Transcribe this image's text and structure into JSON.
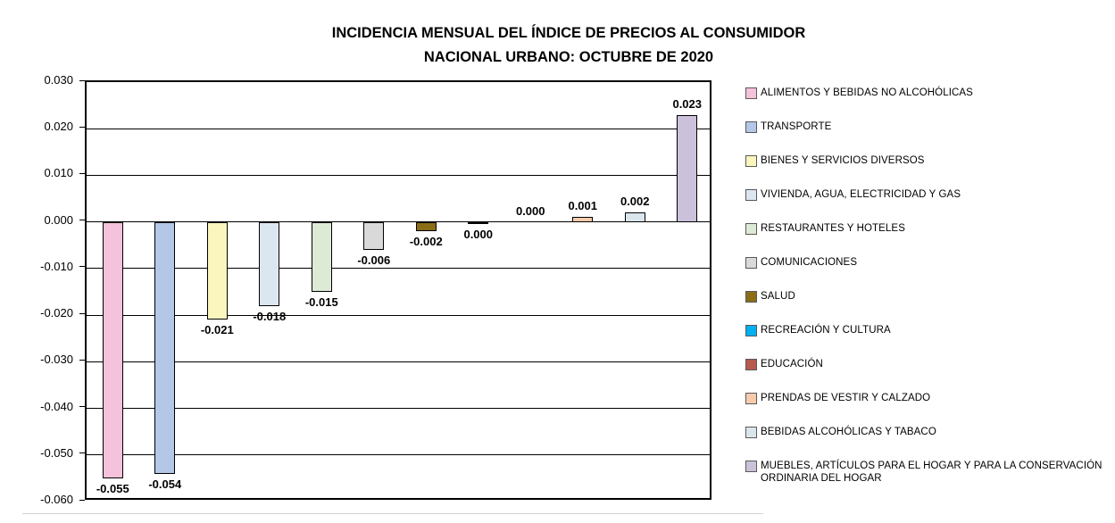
{
  "title": {
    "line1": "INCIDENCIA MENSUAL  DEL ÍNDICE DE PRECIOS AL CONSUMIDOR",
    "line2": "NACIONAL URBANO: OCTUBRE DE 2020"
  },
  "chart_data": {
    "type": "bar",
    "title": "INCIDENCIA MENSUAL DEL ÍNDICE DE PRECIOS AL CONSUMIDOR NACIONAL URBANO: OCTUBRE DE 2020",
    "xlabel": "",
    "ylabel": "",
    "ylim": [
      -0.06,
      0.03
    ],
    "ytick_step": 0.01,
    "ytick_labels": [
      "0.030",
      "0.020",
      "0.010",
      "0.000",
      "-0.010",
      "-0.020",
      "-0.030",
      "-0.040",
      "-0.050",
      "-0.060"
    ],
    "grid": true,
    "legend_position": "right",
    "bars": [
      {
        "category": "ALIMENTOS Y BEBIDAS NO ALCOHÓLICAS",
        "value": -0.055,
        "label": "-0.055",
        "color": "#F4C2DB"
      },
      {
        "category": "TRANSPORTE",
        "value": -0.054,
        "label": "-0.054",
        "color": "#B4C7E7"
      },
      {
        "category": "BIENES Y SERVICIOS DIVERSOS",
        "value": -0.021,
        "label": "-0.021",
        "color": "#FBF5BE"
      },
      {
        "category": "VIVIENDA, AGUA, ELECTRICIDAD Y GAS",
        "value": -0.018,
        "label": "-0.018",
        "color": "#DCE6F1"
      },
      {
        "category": "RESTAURANTES Y HOTELES",
        "value": -0.015,
        "label": "-0.015",
        "color": "#DDEAD5"
      },
      {
        "category": "COMUNICACIONES",
        "value": -0.006,
        "label": "-0.006",
        "color": "#D9D9D9"
      },
      {
        "category": "SALUD",
        "value": -0.002,
        "label": "-0.002",
        "color": "#8A6D15"
      },
      {
        "category": "RECREACIÓN Y CULTURA",
        "value": -0.0005,
        "label": "0.000",
        "color": "#00B0F0"
      },
      {
        "category": "EDUCACIÓN",
        "value": 0.0,
        "label": "0.000",
        "color": "#B65A50"
      },
      {
        "category": "PRENDAS DE VESTIR Y CALZADO",
        "value": 0.001,
        "label": "0.001",
        "color": "#F8CBAD"
      },
      {
        "category": "BEBIDAS ALCOHÓLICAS Y TABACO",
        "value": 0.002,
        "label": "0.002",
        "color": "#DBE5EC"
      },
      {
        "category": "MUEBLES, ARTÍCULOS PARA EL HOGAR Y PARA LA CONSERVACIÓN ORDINARIA DEL HOGAR",
        "value": 0.023,
        "label": "0.023",
        "color": "#CCC1DA"
      }
    ]
  }
}
